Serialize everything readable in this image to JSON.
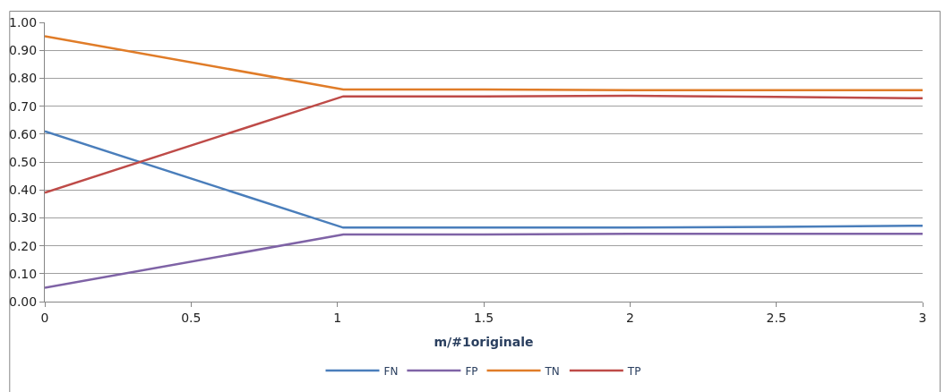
{
  "chart_data": {
    "type": "line",
    "xlabel": "m/#1originale",
    "x": [
      0,
      1.02,
      1.5,
      2,
      2.5,
      3
    ],
    "series": [
      {
        "name": "FN",
        "color": "#4a7ebb",
        "values": [
          0.61,
          0.265,
          0.265,
          0.265,
          0.268,
          0.272
        ]
      },
      {
        "name": "FP",
        "color": "#7f63a6",
        "values": [
          0.05,
          0.24,
          0.24,
          0.243,
          0.243,
          0.243
        ]
      },
      {
        "name": "TN",
        "color": "#e07c28",
        "values": [
          0.95,
          0.76,
          0.76,
          0.757,
          0.757,
          0.757
        ]
      },
      {
        "name": "TP",
        "color": "#be4b48",
        "values": [
          0.39,
          0.735,
          0.735,
          0.737,
          0.733,
          0.728
        ]
      }
    ],
    "xlim": [
      0,
      3
    ],
    "xticks": [
      0,
      0.5,
      1,
      1.5,
      2,
      2.5,
      3
    ],
    "ylim": [
      0,
      1
    ],
    "yticks": [
      {
        "value": 0,
        "label": "0.00"
      },
      {
        "value": 0.1,
        "label": "0.10"
      },
      {
        "value": 0.2,
        "label": "0.20"
      },
      {
        "value": 0.3,
        "label": "0.30"
      },
      {
        "value": 0.4,
        "label": "0.40"
      },
      {
        "value": 0.5,
        "label": "0.50"
      },
      {
        "value": 0.6,
        "label": "0.60"
      },
      {
        "value": 0.7,
        "label": "0.70"
      },
      {
        "value": 0.8,
        "label": "0.80"
      },
      {
        "value": 0.9,
        "label": "0.90"
      },
      {
        "value": 1,
        "label": "1.00"
      }
    ],
    "grid": "y",
    "legend": "bottom",
    "marker": "none",
    "line_style": "solid"
  }
}
